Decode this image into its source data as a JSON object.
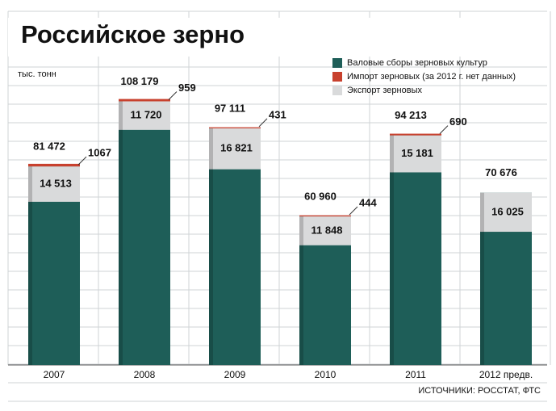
{
  "chart_data": {
    "type": "bar",
    "title": "Российское зерно",
    "y_label": "тыс. тонн",
    "source": "ИСТОЧНИКИ: РОССТАТ, ФТС",
    "categories": [
      "2007",
      "2008",
      "2009",
      "2010",
      "2011",
      "2012 предв."
    ],
    "ylim": [
      0,
      110000
    ],
    "series": [
      {
        "name": "Валовые сборы зерновых культур",
        "color": "#1e5e58",
        "values": [
          81472,
          108179,
          97111,
          60960,
          94213,
          70676
        ],
        "value_labels": [
          "81 472",
          "108 179",
          "97 111",
          "60 960",
          "94 213",
          "70 676"
        ]
      },
      {
        "name": "Импорт зерновых (за 2012 г. нет данных)",
        "color": "#c8412e",
        "values": [
          1067,
          959,
          431,
          444,
          690,
          null
        ]
      },
      {
        "name": "Экспорт зерновых",
        "color": "#d9dadb",
        "values": [
          14513,
          11720,
          16821,
          11848,
          15181,
          16025
        ],
        "value_labels": [
          "14 513",
          "11 720",
          "16 821",
          "11 848",
          "15 181",
          "16 025"
        ]
      }
    ],
    "legend": "top-right"
  }
}
